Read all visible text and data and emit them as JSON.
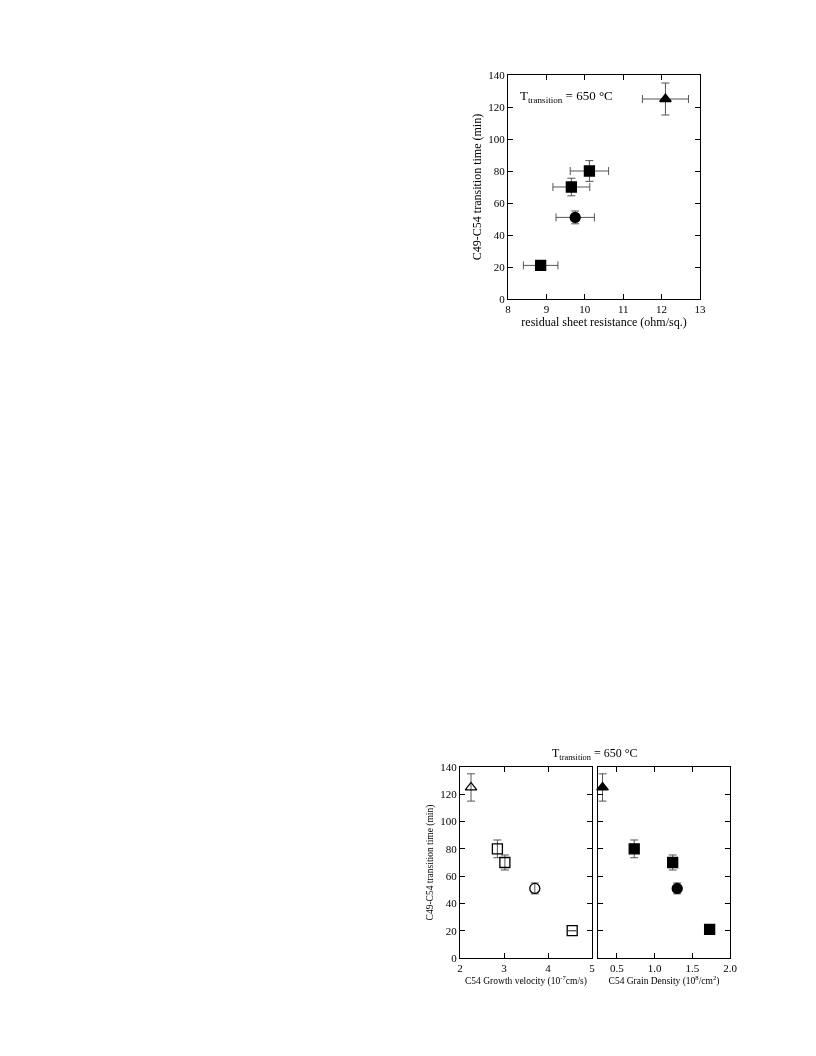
{
  "chart_data": [
    {
      "type": "scatter",
      "xlabel": "residual sheet resistance (ohm/sq.)",
      "ylabel": "C49-C54 transition time (min)",
      "annotations": [
        "T$_{transition}$ = 650 °C"
      ],
      "xlim": [
        8,
        13
      ],
      "xticks": [
        8,
        9,
        10,
        11,
        12,
        13
      ],
      "ylim": [
        0,
        140
      ],
      "yticks": [
        0,
        20,
        40,
        60,
        80,
        100,
        120,
        140
      ],
      "grid": false,
      "series": [
        {
          "color": "#000000",
          "marker": "square",
          "x": [
            8.85,
            9.65,
            10.12
          ],
          "values": [
            21,
            70,
            80
          ],
          "errors": [
            null,
            5.5,
            6.5
          ],
          "xerrors": [
            0.45,
            0.48,
            0.5
          ]
        },
        {
          "color": "#000000",
          "marker": "circle",
          "x": [
            9.75
          ],
          "values": [
            51
          ],
          "errors": [
            4
          ],
          "xerrors": [
            0.5
          ]
        },
        {
          "color": "#000000",
          "marker": "triangle",
          "x": [
            12.1
          ],
          "values": [
            125
          ],
          "errors": [
            10
          ],
          "xerrors": [
            0.6
          ]
        }
      ]
    },
    {
      "type": "scatter",
      "title": "T$_{transition}$ = 650 °C",
      "xlabel": "C54 Growth velocity (10$^{-7}$cm/s)",
      "ylabel": "C49-C54 transition time (min)",
      "xlim": [
        2,
        5
      ],
      "xticks": [
        2,
        3,
        4,
        5
      ],
      "ylim": [
        0,
        140
      ],
      "yticks": [
        0,
        20,
        40,
        60,
        80,
        100,
        120,
        140
      ],
      "grid": false,
      "series": [
        {
          "color": "#000000",
          "marker": "square",
          "x": [
            2.85,
            3.02,
            4.55
          ],
          "values": [
            80,
            70,
            20
          ],
          "errors": [
            6.5,
            5.5,
            null
          ]
        },
        {
          "color": "#000000",
          "marker": "circle",
          "x": [
            3.7
          ],
          "values": [
            51
          ],
          "errors": [
            4
          ]
        },
        {
          "color": "#000000",
          "marker": "triangle",
          "x": [
            2.25
          ],
          "values": [
            125
          ],
          "errors": [
            10
          ]
        }
      ]
    },
    {
      "type": "scatter",
      "xlabel": "C54 Grain Density (10$^{8}$/cm$^{2}$)",
      "xlim": [
        0.25,
        2.0
      ],
      "xticks": [
        0.5,
        {
          "value": 1,
          "label": "1.0"
        },
        1.5,
        {
          "value": 2,
          "label": "2.0"
        }
      ],
      "ylim": [
        0,
        140
      ],
      "yticks": [
        0,
        20,
        40,
        60,
        80,
        100,
        120,
        140
      ],
      "tick_labels": "x",
      "grid": false,
      "series": [
        {
          "color": "#000000",
          "marker": "square",
          "x": [
            0.73,
            1.24,
            1.73
          ],
          "values": [
            80,
            70,
            21
          ],
          "errors": [
            6.5,
            5.5,
            null
          ]
        },
        {
          "color": "#000000",
          "marker": "circle",
          "x": [
            1.3
          ],
          "values": [
            51
          ],
          "errors": [
            4
          ]
        },
        {
          "color": "#000000",
          "marker": "triangle",
          "x": [
            0.31
          ],
          "values": [
            125
          ],
          "errors": [
            10
          ]
        }
      ]
    }
  ]
}
